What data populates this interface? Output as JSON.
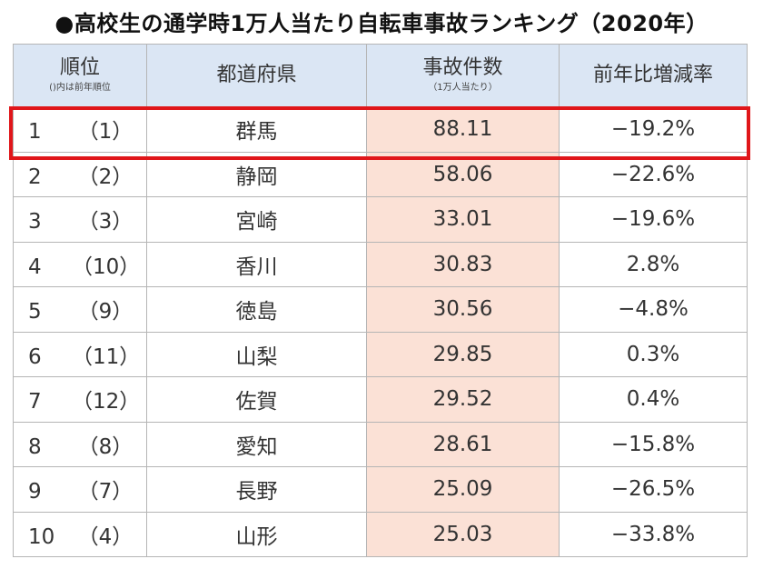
{
  "title": "●高校生の通学時1万人当たり自転車事故ランキング（2020年）",
  "chart_data": {
    "type": "table",
    "columns": [
      {
        "label": "順位",
        "sub": "()内は前年順位"
      },
      {
        "label": "都道府県",
        "sub": ""
      },
      {
        "label": "事故件数",
        "sub": "（1万人当たり）"
      },
      {
        "label": "前年比増減率",
        "sub": ""
      }
    ],
    "rows": [
      {
        "rank": "1",
        "prev_rank": "（1）",
        "prefecture": "群馬",
        "count": "88.11",
        "change": "−19.2%"
      },
      {
        "rank": "2",
        "prev_rank": "（2）",
        "prefecture": "静岡",
        "count": "58.06",
        "change": "−22.6%"
      },
      {
        "rank": "3",
        "prev_rank": "（3）",
        "prefecture": "宮崎",
        "count": "33.01",
        "change": "−19.6%"
      },
      {
        "rank": "4",
        "prev_rank": "（10）",
        "prefecture": "香川",
        "count": "30.83",
        "change": "2.8%"
      },
      {
        "rank": "5",
        "prev_rank": "（9）",
        "prefecture": "徳島",
        "count": "30.56",
        "change": "−4.8%"
      },
      {
        "rank": "6",
        "prev_rank": "（11）",
        "prefecture": "山梨",
        "count": "29.85",
        "change": "0.3%"
      },
      {
        "rank": "7",
        "prev_rank": "（12）",
        "prefecture": "佐賀",
        "count": "29.52",
        "change": "0.4%"
      },
      {
        "rank": "8",
        "prev_rank": "（8）",
        "prefecture": "愛知",
        "count": "28.61",
        "change": "−15.8%"
      },
      {
        "rank": "9",
        "prev_rank": "（7）",
        "prefecture": "長野",
        "count": "25.09",
        "change": "−26.5%"
      },
      {
        "rank": "10",
        "prev_rank": "（4）",
        "prefecture": "山形",
        "count": "25.03",
        "change": "−33.8%"
      }
    ],
    "highlighted_row": "1"
  },
  "colors": {
    "header_bg": "#dbe6f4",
    "count_bg": "#fbe1d6",
    "highlight": "#e0161a"
  }
}
